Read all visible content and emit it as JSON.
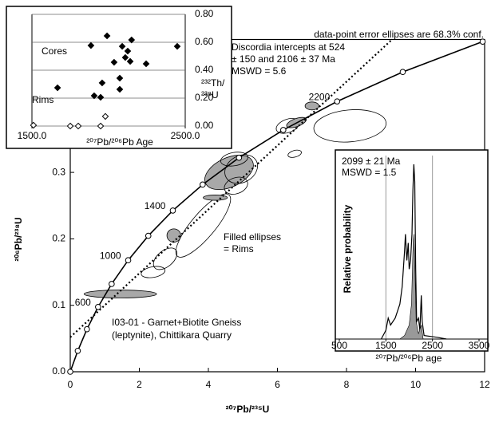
{
  "chart_data": [
    {
      "type": "concordia",
      "x_label": "²⁰⁷Pb/²³⁵U",
      "y_label": "²⁰⁶Pb/²³⁸U",
      "xlim": [
        0,
        12
      ],
      "ylim": [
        0,
        0.5
      ],
      "xticks": [
        0,
        2,
        4,
        6,
        8,
        10,
        12
      ],
      "yticks": [
        {
          "value": 0,
          "label": "0.0"
        },
        0.1,
        0.2,
        0.3
      ],
      "annotations": [
        "data-point error ellipses are 68.3% conf.",
        "Discordia intercepts at 524",
        "± 150 and 2106 ± 37 Ma",
        "MSWD = 5.6",
        "Filled ellipses",
        "= Rims",
        "I03-01 - Garnet+Biotite Gneiss",
        "(leptynite), Chittikara Quarry"
      ],
      "concordia_ages": [
        0,
        200,
        400,
        600,
        800,
        1000,
        1200,
        1400,
        1600,
        1800,
        2000,
        2200,
        2400,
        2600
      ],
      "concordia_x": [
        0,
        0.2177,
        0.4828,
        0.8056,
        1.1987,
        1.6774,
        2.2603,
        2.9701,
        3.8345,
        4.8871,
        6.1686,
        7.7292,
        9.629,
        11.943
      ],
      "concordia_y": [
        0,
        0.0315,
        0.064,
        0.0975,
        0.1321,
        0.1678,
        0.2046,
        0.2426,
        0.2817,
        0.3221,
        0.3638,
        0.4068,
        0.4511,
        0.4968
      ],
      "age_labels": [
        600,
        1000,
        1400,
        2200
      ],
      "discordia_x": [
        0,
        9.3
      ],
      "discordia_y": [
        0.052,
        0.499
      ],
      "ellipse_fill": "#a8a8a8",
      "ellipses": [
        {
          "x": 1.45,
          "y": 0.117,
          "rx": 1.05,
          "ry": 0.006,
          "angle": 0,
          "filled": true
        },
        {
          "x": 2.4,
          "y": 0.15,
          "rx": 0.35,
          "ry": 0.008,
          "angle": 10,
          "filled": false
        },
        {
          "x": 2.75,
          "y": 0.17,
          "rx": 0.4,
          "ry": 0.012,
          "angle": 40,
          "filled": false
        },
        {
          "x": 3.0,
          "y": 0.205,
          "rx": 0.2,
          "ry": 0.01,
          "angle": 0,
          "filled": true
        },
        {
          "x": 3.85,
          "y": 0.22,
          "rx": 1.16,
          "ry": 0.018,
          "angle": 50,
          "filled": false
        },
        {
          "x": 4.2,
          "y": 0.262,
          "rx": 0.35,
          "ry": 0.004,
          "angle": 0,
          "filled": true
        },
        {
          "x": 4.6,
          "y": 0.3,
          "rx": 0.75,
          "ry": 0.022,
          "angle": 25,
          "filled": true
        },
        {
          "x": 4.95,
          "y": 0.305,
          "rx": 0.5,
          "ry": 0.02,
          "angle": 30,
          "filled": false
        },
        {
          "x": 4.8,
          "y": 0.28,
          "rx": 0.35,
          "ry": 0.012,
          "angle": 20,
          "filled": false
        },
        {
          "x": 4.75,
          "y": 0.32,
          "rx": 0.4,
          "ry": 0.01,
          "angle": 10,
          "filled": false
        },
        {
          "x": 6.5,
          "y": 0.328,
          "rx": 0.2,
          "ry": 0.005,
          "angle": 15,
          "filled": false
        },
        {
          "x": 6.3,
          "y": 0.37,
          "rx": 0.35,
          "ry": 0.01,
          "angle": 20,
          "filled": false
        },
        {
          "x": 6.55,
          "y": 0.375,
          "rx": 0.3,
          "ry": 0.006,
          "angle": 20,
          "filled": true
        },
        {
          "x": 7.0,
          "y": 0.4,
          "rx": 0.2,
          "ry": 0.006,
          "angle": 0,
          "filled": true
        },
        {
          "x": 8.1,
          "y": 0.37,
          "rx": 1.05,
          "ry": 0.024,
          "angle": 5,
          "filled": false
        }
      ]
    },
    {
      "type": "scatter",
      "x_label": "²⁰⁷Pb/²⁰⁶Pb Age",
      "y_label": [
        "²³²Th/",
        "²³⁸U"
      ],
      "xlim": [
        1500,
        2500
      ],
      "ylim": [
        0,
        0.8
      ],
      "grid": true,
      "xticks": [
        {
          "value": 1500,
          "label": "1500.0"
        },
        {
          "value": 2500,
          "label": "2500.0"
        }
      ],
      "yticks": [
        {
          "value": 0,
          "label": "0.00"
        },
        {
          "value": 0.2,
          "label": "0.20"
        },
        {
          "value": 0.4,
          "label": "0.40"
        },
        {
          "value": 0.6,
          "label": "0.60"
        },
        {
          "value": 0.8,
          "label": "0.80"
        }
      ],
      "series": [
        {
          "name": "Cores",
          "color": "#000000",
          "filled": true,
          "x": [
            1990,
            1885,
            2150,
            2089,
            2125,
            2109,
            2036,
            2141,
            2245,
            2448,
            2073,
            1667,
            1958,
            2073,
            1906,
            1948
          ],
          "y": [
            0.646,
            0.577,
            0.617,
            0.571,
            0.537,
            0.491,
            0.457,
            0.463,
            0.446,
            0.571,
            0.343,
            0.274,
            0.309,
            0.263,
            0.217,
            0.206
          ]
        },
        {
          "name": "Rims",
          "color": "#000000",
          "filled": false,
          "x": [
            1510,
            1750,
            1802,
            1948,
            1979
          ],
          "y": [
            0.006,
            0,
            0,
            0,
            0.069
          ]
        }
      ]
    },
    {
      "type": "probability",
      "x_label": "²⁰⁷Pb/²⁰⁶Pb age",
      "y_label": "Relative probability",
      "annotations": [
        "2099 ± 21 Ma",
        "MSWD = 1.5"
      ],
      "xlim": [
        500,
        3500
      ],
      "ylim": [
        0,
        1.05
      ],
      "grid": true,
      "xticks": [
        500,
        1500,
        2500,
        3500
      ],
      "curves": [
        {
          "filled": false,
          "color": "#000000",
          "x": [
            1400,
            1500,
            1550,
            1600,
            1700,
            1800,
            1850,
            1900,
            1920,
            1950,
            1980,
            2000,
            2030,
            2060,
            2080,
            2100,
            2120,
            2140,
            2160,
            2200,
            2230,
            2260,
            2280,
            2320,
            2600,
            2800
          ],
          "y": [
            0,
            0.05,
            0.12,
            0.08,
            0.12,
            0.2,
            0.3,
            0.5,
            0.6,
            0.45,
            0.55,
            0.4,
            0.45,
            0.6,
            0.85,
            1.0,
            0.9,
            0.4,
            0.1,
            0.12,
            0.05,
            0.25,
            0.1,
            0.02,
            0.01,
            0
          ]
        },
        {
          "filled": true,
          "color": "#999999",
          "x": [
            1800,
            1900,
            2000,
            2050,
            2080,
            2100,
            2120,
            2150,
            2200,
            2260,
            2300
          ],
          "y": [
            0,
            0.02,
            0.08,
            0.2,
            0.5,
            0.6,
            0.45,
            0.1,
            0.03,
            0.08,
            0
          ]
        }
      ]
    }
  ]
}
